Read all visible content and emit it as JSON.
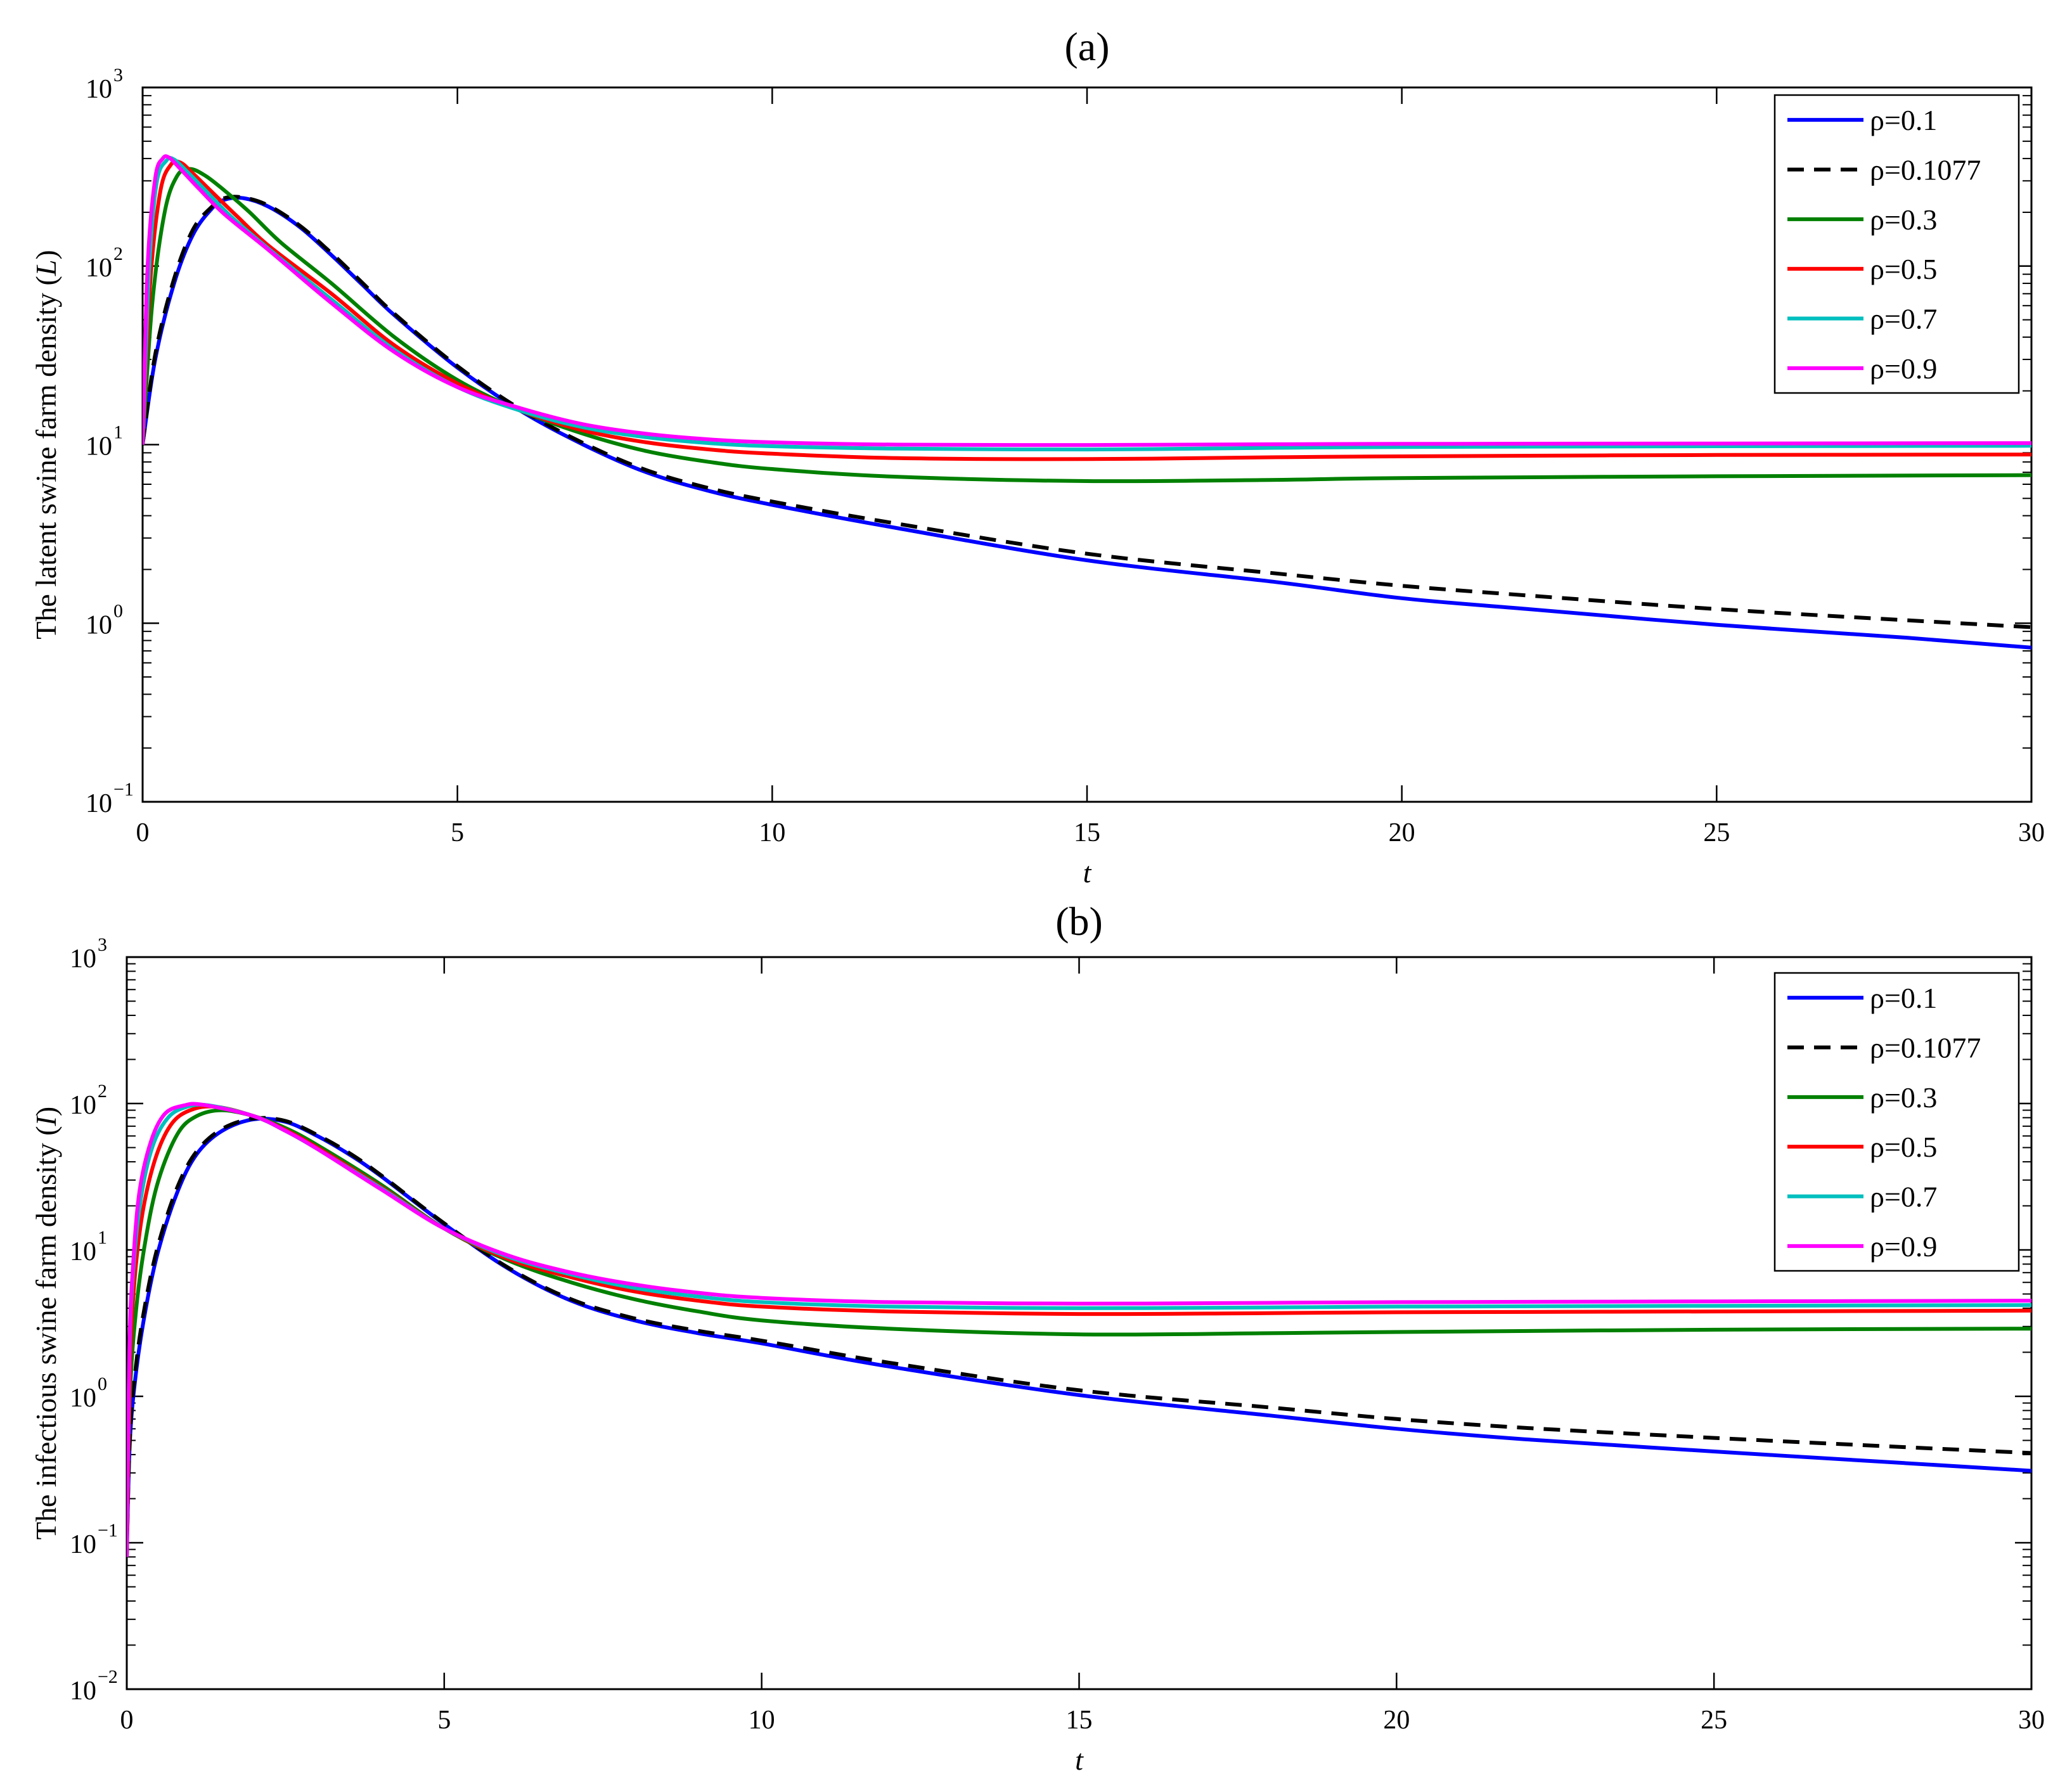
{
  "chart_data": [
    {
      "type": "line",
      "title": "(a)",
      "xlabel": "t",
      "ylabel": {
        "prefix": "The latent swine farm density (",
        "var": "L",
        "suffix": ")"
      },
      "xlim": [
        0,
        30
      ],
      "ylim": [
        0.1,
        1000
      ],
      "yscale": "log",
      "xticks": [
        0,
        5,
        10,
        15,
        20,
        25,
        30
      ],
      "yticks": [
        {
          "value": 0.1,
          "exp": "−1"
        },
        {
          "value": 1,
          "exp": "0"
        },
        {
          "value": 10,
          "exp": "1"
        },
        {
          "value": 100,
          "exp": "2"
        },
        {
          "value": 1000,
          "exp": "3"
        }
      ],
      "legend_position": "top-right",
      "series": [
        {
          "name": "ρ=0.1",
          "color": "#0000ff",
          "dash": false,
          "x": [
            0,
            0.2,
            0.5,
            0.8,
            1.1,
            1.3,
            1.6,
            2,
            2.5,
            3,
            3.5,
            4,
            5,
            6,
            7,
            8,
            9,
            10,
            12,
            15,
            18,
            20,
            22,
            25,
            28,
            30
          ],
          "y": [
            10,
            30,
            80,
            150,
            210,
            235,
            240,
            215,
            165,
            115,
            78,
            53,
            27,
            15.5,
            10,
            7,
            5.5,
            4.6,
            3.4,
            2.25,
            1.7,
            1.38,
            1.2,
            0.98,
            0.83,
            0.73
          ]
        },
        {
          "name": "ρ=0.1077",
          "color": "#000000",
          "dash": true,
          "x": [
            0,
            0.2,
            0.5,
            0.8,
            1.1,
            1.3,
            1.6,
            2,
            2.5,
            3,
            3.5,
            4,
            5,
            6,
            7,
            8,
            9,
            10,
            12,
            15,
            18,
            20,
            22,
            25,
            28,
            30
          ],
          "y": [
            10,
            32,
            85,
            160,
            215,
            240,
            242,
            218,
            168,
            118,
            80,
            54,
            27.5,
            15.8,
            10.2,
            7.2,
            5.7,
            4.8,
            3.6,
            2.45,
            1.9,
            1.62,
            1.43,
            1.2,
            1.04,
            0.95
          ]
        },
        {
          "name": "ρ=0.3",
          "color": "#008000",
          "dash": false,
          "x": [
            0,
            0.15,
            0.35,
            0.55,
            0.75,
            1,
            1.3,
            1.7,
            2.2,
            3,
            4,
            5,
            6,
            7,
            8,
            9,
            10,
            12,
            15,
            18,
            20,
            25,
            30
          ],
          "y": [
            10,
            60,
            200,
            320,
            350,
            320,
            265,
            200,
            135,
            80,
            40,
            23,
            15.5,
            11.5,
            9.2,
            8,
            7.3,
            6.6,
            6.25,
            6.35,
            6.5,
            6.65,
            6.75
          ]
        },
        {
          "name": "ρ=0.5",
          "color": "#ff0000",
          "dash": false,
          "x": [
            0,
            0.12,
            0.28,
            0.45,
            0.6,
            0.8,
            1.1,
            1.5,
            2,
            3,
            4,
            5,
            6,
            7,
            8,
            9,
            10,
            12,
            15,
            18,
            20,
            25,
            30
          ],
          "y": [
            10,
            80,
            260,
            370,
            380,
            330,
            260,
            190,
            130,
            70,
            36,
            22,
            15.5,
            12,
            10.3,
            9.4,
            8.9,
            8.4,
            8.3,
            8.5,
            8.6,
            8.75,
            8.8
          ]
        },
        {
          "name": "ρ=0.7",
          "color": "#00bfbf",
          "dash": false,
          "x": [
            0,
            0.1,
            0.22,
            0.38,
            0.5,
            0.7,
            1,
            1.4,
            2,
            3,
            4,
            5,
            6,
            7,
            8,
            9,
            10,
            12,
            15,
            18,
            20,
            25,
            30
          ],
          "y": [
            10,
            90,
            290,
            390,
            395,
            340,
            265,
            190,
            125,
            65,
            34,
            21,
            15.5,
            12.5,
            11,
            10.2,
            9.8,
            9.5,
            9.4,
            9.6,
            9.7,
            9.8,
            9.85
          ]
        },
        {
          "name": "ρ=0.9",
          "color": "#ff00ff",
          "dash": false,
          "x": [
            0,
            0.08,
            0.2,
            0.32,
            0.42,
            0.6,
            0.9,
            1.3,
            2,
            3,
            4,
            5,
            6,
            7,
            8,
            9,
            10,
            12,
            15,
            18,
            20,
            25,
            30
          ],
          "y": [
            10,
            100,
            310,
            400,
            405,
            350,
            270,
            195,
            123,
            62,
            33,
            21,
            16,
            13,
            11.5,
            10.7,
            10.3,
            10,
            9.95,
            10.05,
            10.1,
            10.15,
            10.2
          ]
        }
      ]
    },
    {
      "type": "line",
      "title": "(b)",
      "xlabel": "t",
      "ylabel": {
        "prefix": "The infectious swine farm density (",
        "var": "I",
        "suffix": ")"
      },
      "xlim": [
        0,
        30
      ],
      "ylim": [
        0.01,
        1000
      ],
      "yscale": "log",
      "xticks": [
        0,
        5,
        10,
        15,
        20,
        25,
        30
      ],
      "yticks": [
        {
          "value": 0.01,
          "exp": "−2"
        },
        {
          "value": 0.1,
          "exp": "−1"
        },
        {
          "value": 1,
          "exp": "0"
        },
        {
          "value": 10,
          "exp": "1"
        },
        {
          "value": 100,
          "exp": "2"
        },
        {
          "value": 1000,
          "exp": "3"
        }
      ],
      "legend_position": "top-right",
      "series": [
        {
          "name": "ρ=0.1",
          "color": "#0000ff",
          "dash": false,
          "x": [
            0,
            0.05,
            0.15,
            0.3,
            0.5,
            0.8,
            1.1,
            1.5,
            2,
            2.5,
            3,
            3.5,
            4,
            5,
            6,
            7,
            8,
            9,
            10,
            12,
            15,
            18,
            20,
            22,
            25,
            28,
            30
          ],
          "y": [
            0.08,
            0.5,
            1.5,
            4,
            10,
            25,
            45,
            65,
            78,
            75,
            60,
            45,
            32,
            15,
            7.5,
            4.5,
            3.3,
            2.7,
            2.3,
            1.6,
            1.02,
            0.74,
            0.6,
            0.51,
            0.42,
            0.35,
            0.31
          ]
        },
        {
          "name": "ρ=0.1077",
          "color": "#000000",
          "dash": true,
          "x": [
            0,
            0.05,
            0.15,
            0.3,
            0.5,
            0.8,
            1.1,
            1.5,
            2,
            2.5,
            3,
            3.5,
            4,
            5,
            6,
            7,
            8,
            9,
            10,
            12,
            15,
            18,
            20,
            22,
            25,
            28,
            30
          ],
          "y": [
            0.08,
            0.55,
            1.7,
            4.5,
            11,
            27,
            47,
            67,
            79,
            76,
            61,
            46,
            32.5,
            15.2,
            7.6,
            4.6,
            3.4,
            2.8,
            2.4,
            1.7,
            1.1,
            0.84,
            0.7,
            0.61,
            0.52,
            0.45,
            0.41
          ]
        },
        {
          "name": "ρ=0.3",
          "color": "#008000",
          "dash": false,
          "x": [
            0,
            0.05,
            0.15,
            0.3,
            0.5,
            0.8,
            1.1,
            1.5,
            2,
            2.5,
            3,
            4,
            5,
            6,
            7,
            8,
            9,
            10,
            12,
            15,
            18,
            20,
            25,
            30
          ],
          "y": [
            0.08,
            1,
            4,
            12,
            30,
            62,
            82,
            90,
            82,
            68,
            52,
            28,
            14,
            8.5,
            6,
            4.6,
            3.8,
            3.3,
            2.9,
            2.65,
            2.7,
            2.75,
            2.85,
            2.9
          ]
        },
        {
          "name": "ρ=0.5",
          "color": "#ff0000",
          "dash": false,
          "x": [
            0,
            0.05,
            0.12,
            0.25,
            0.45,
            0.7,
            1,
            1.4,
            2,
            2.5,
            3,
            4,
            5,
            6,
            7,
            8,
            9,
            10,
            12,
            15,
            18,
            20,
            25,
            30
          ],
          "y": [
            0.08,
            1.5,
            6,
            18,
            42,
            72,
            90,
            95,
            82,
            66,
            50,
            27,
            14,
            8.7,
            6.5,
            5.2,
            4.5,
            4.1,
            3.8,
            3.65,
            3.7,
            3.75,
            3.8,
            3.85
          ]
        },
        {
          "name": "ρ=0.7",
          "color": "#00bfbf",
          "dash": false,
          "x": [
            0,
            0.04,
            0.1,
            0.22,
            0.4,
            0.65,
            0.95,
            1.3,
            2,
            2.5,
            3,
            4,
            5,
            6,
            7,
            8,
            9,
            10,
            12,
            15,
            18,
            20,
            25,
            30
          ],
          "y": [
            0.08,
            1.8,
            7,
            22,
            50,
            80,
            95,
            97,
            82,
            65,
            49,
            26.5,
            14,
            9,
            6.8,
            5.5,
            4.8,
            4.4,
            4.1,
            4,
            4.05,
            4.1,
            4.15,
            4.2
          ]
        },
        {
          "name": "ρ=0.9",
          "color": "#ff00ff",
          "dash": false,
          "x": [
            0,
            0.04,
            0.1,
            0.2,
            0.38,
            0.6,
            0.9,
            1.2,
            2,
            2.5,
            3,
            4,
            5,
            6,
            7,
            8,
            9,
            10,
            12,
            15,
            18,
            20,
            25,
            30
          ],
          "y": [
            0.08,
            2,
            8,
            25,
            55,
            85,
            97,
            98,
            82,
            65,
            49,
            26,
            14,
            9.2,
            7,
            5.8,
            5.1,
            4.7,
            4.4,
            4.3,
            4.35,
            4.4,
            4.45,
            4.5
          ]
        }
      ]
    }
  ]
}
